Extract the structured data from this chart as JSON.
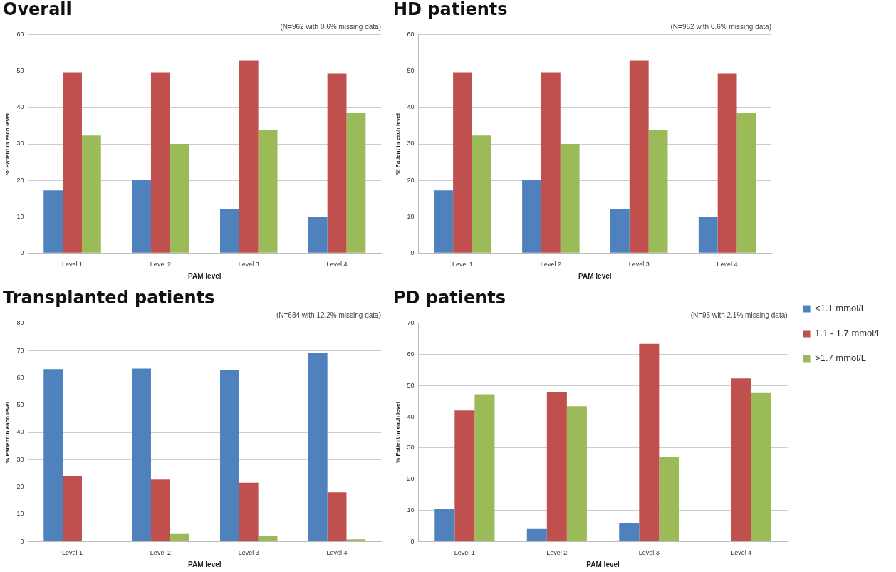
{
  "chart_data": [
    {
      "type": "bar",
      "title": "Overall",
      "subtitle": "(N=962 with 0.6% missing data)",
      "xlabel": "PAM level",
      "ylabel": "% Patient in each level",
      "categories": [
        "Level 1",
        "Level 2",
        "Level 3",
        "Level 4"
      ],
      "ylim": [
        0,
        60
      ],
      "yticks": [
        0,
        10,
        20,
        30,
        40,
        50,
        60
      ],
      "grid": "y",
      "legend": false,
      "series": [
        {
          "color": "#4f81bd",
          "values": [
            17.2,
            20.1,
            12.1,
            10.0
          ]
        },
        {
          "color": "#c0504d",
          "values": [
            49.7,
            49.7,
            53.0,
            49.3
          ]
        },
        {
          "color": "#9bbb59",
          "values": [
            32.3,
            30.0,
            33.8,
            38.4
          ]
        }
      ]
    },
    {
      "type": "bar",
      "title": "HD patients",
      "subtitle": "(N=962 with 0.6% missing data)",
      "xlabel": "PAM level",
      "ylabel": "% Patient in each level",
      "categories": [
        "Level 1",
        "Level 2",
        "Level 3",
        "Level 4"
      ],
      "ylim": [
        0,
        60
      ],
      "yticks": [
        0,
        10,
        20,
        30,
        40,
        50,
        60
      ],
      "grid": "y",
      "legend": false,
      "series": [
        {
          "color": "#4f81bd",
          "values": [
            17.2,
            20.1,
            12.1,
            10.0
          ]
        },
        {
          "color": "#c0504d",
          "values": [
            49.7,
            49.7,
            53.0,
            49.3
          ]
        },
        {
          "color": "#9bbb59",
          "values": [
            32.3,
            30.0,
            33.8,
            38.4
          ]
        }
      ]
    },
    {
      "type": "bar",
      "title": "Transplanted patients",
      "subtitle": "(N=684 with 12.2% missing data)",
      "xlabel": "PAM level",
      "ylabel": "% Patient in each level",
      "categories": [
        "Level 1",
        "Level 2",
        "Level 3",
        "Level 4"
      ],
      "ylim": [
        0,
        80
      ],
      "yticks": [
        0,
        10,
        20,
        30,
        40,
        50,
        60,
        70,
        80
      ],
      "grid": "y",
      "legend": false,
      "series": [
        {
          "color": "#4f81bd",
          "values": [
            63.2,
            63.4,
            62.7,
            69.1
          ]
        },
        {
          "color": "#c0504d",
          "values": [
            24.1,
            22.7,
            21.5,
            18.0
          ]
        },
        {
          "color": "#9bbb59",
          "values": [
            0,
            3.0,
            2.0,
            0.8
          ]
        }
      ]
    },
    {
      "type": "bar",
      "title": "PD patients",
      "subtitle": "(N=95 with 2.1% missing data)",
      "xlabel": "PAM level",
      "ylabel": "% Patient in each level",
      "categories": [
        "Level 1",
        "Level 2",
        "Level 3",
        "Level 4"
      ],
      "ylim": [
        0,
        70
      ],
      "yticks": [
        0,
        10,
        20,
        30,
        40,
        50,
        60,
        70
      ],
      "grid": "y",
      "legend": "right",
      "series": [
        {
          "name": "<1.1 mmol/L",
          "color": "#4f81bd",
          "values": [
            10.5,
            4.2,
            6.0,
            0
          ]
        },
        {
          "name": "1.1 - 1.7 mmol/L",
          "color": "#c0504d",
          "values": [
            42.0,
            47.8,
            63.4,
            52.3
          ]
        },
        {
          "name": ">1.7 mmol/L",
          "color": "#9bbb59",
          "values": [
            47.2,
            43.4,
            27.1,
            47.6
          ]
        }
      ]
    }
  ]
}
